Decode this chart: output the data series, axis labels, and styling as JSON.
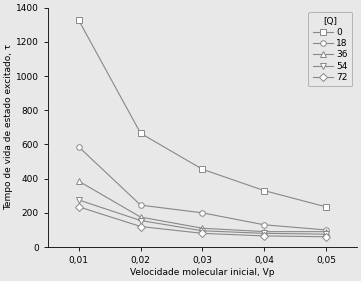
{
  "x": [
    0.01,
    0.02,
    0.03,
    0.04,
    0.05
  ],
  "series": [
    {
      "label": "0",
      "values": [
        1325,
        665,
        455,
        330,
        235
      ],
      "marker": "s"
    },
    {
      "label": "18",
      "values": [
        585,
        245,
        200,
        130,
        100
      ],
      "marker": "o"
    },
    {
      "label": "36",
      "values": [
        385,
        175,
        110,
        90,
        90
      ],
      "marker": "^"
    },
    {
      "label": "54",
      "values": [
        275,
        155,
        95,
        80,
        75
      ],
      "marker": "v"
    },
    {
      "label": "72",
      "values": [
        235,
        120,
        80,
        65,
        60
      ],
      "marker": "D"
    }
  ],
  "xlabel": "Velocidade molecular inicial, Vp",
  "ylabel": "Tempo de vida de estado excitado, τ",
  "legend_title": "[Q]",
  "xlim": [
    0.005,
    0.055
  ],
  "ylim": [
    0,
    1400
  ],
  "yticks": [
    0,
    200,
    400,
    600,
    800,
    1000,
    1200,
    1400
  ],
  "xticks": [
    0.01,
    0.02,
    0.03,
    0.04,
    0.05
  ],
  "line_color": "#888888",
  "background_color": "#e8e8e8",
  "linewidth": 0.8,
  "markersize": 4,
  "tick_fontsize": 6.5,
  "label_fontsize": 6.5,
  "legend_fontsize": 6.5
}
